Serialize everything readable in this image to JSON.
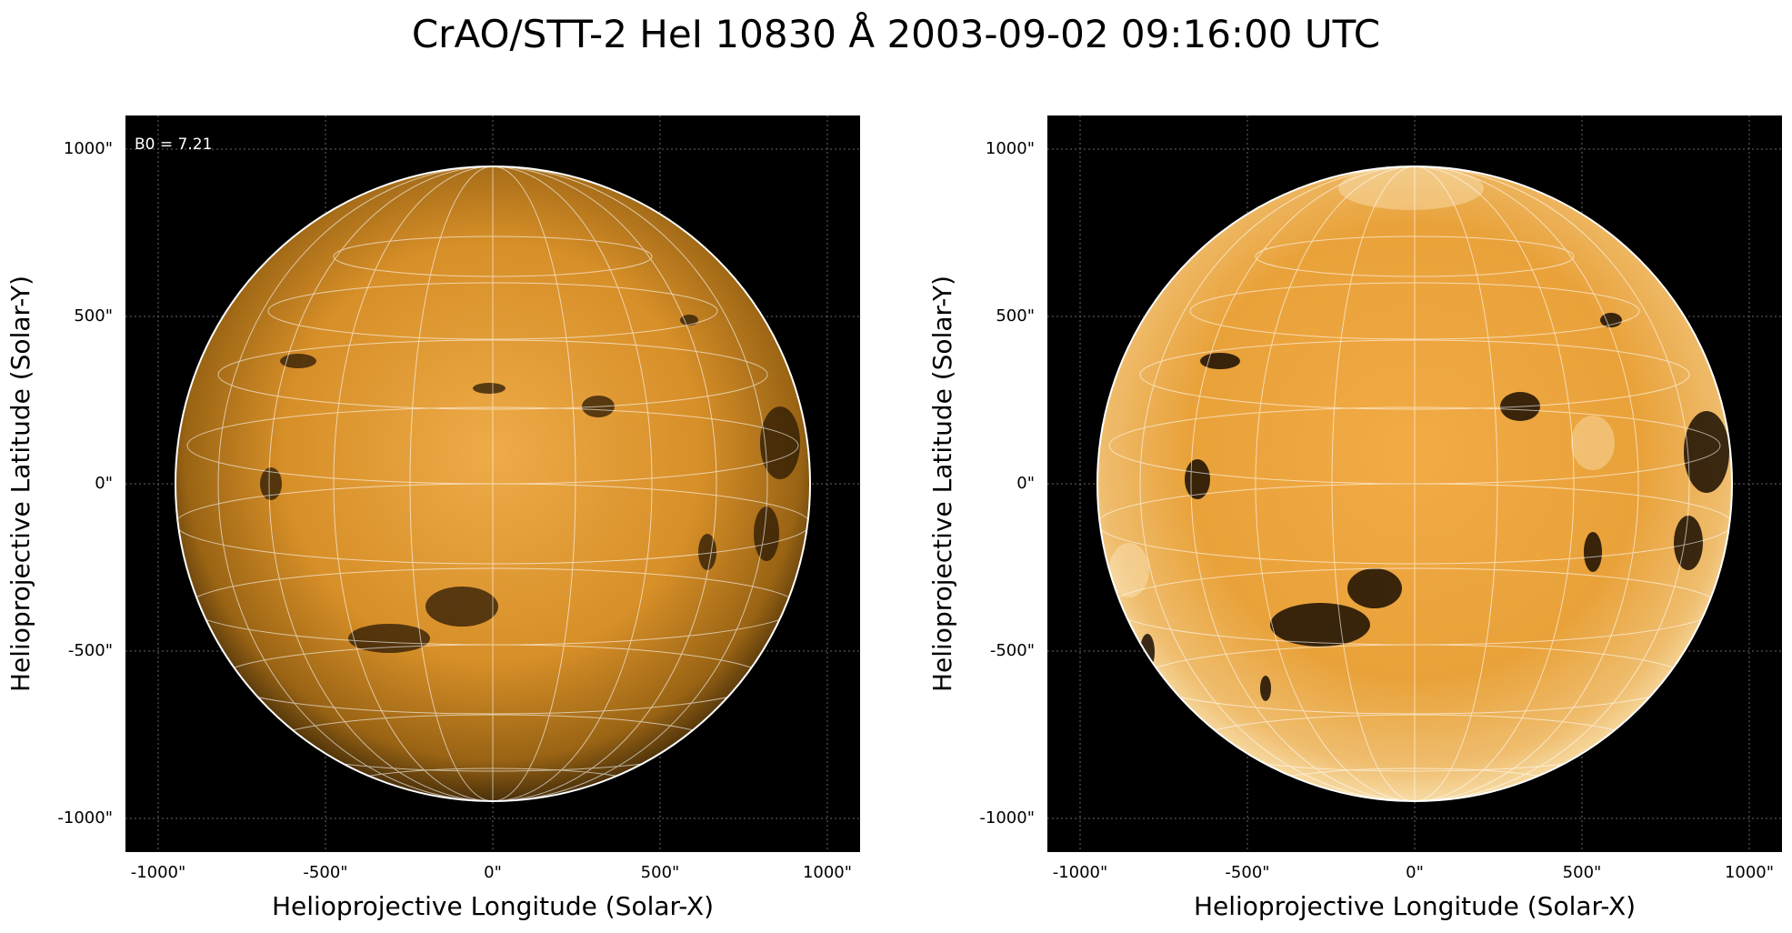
{
  "figure": {
    "title": "CrAO/STT-2 HeI 10830 Å 2003-09-02 09:16:00 UTC"
  },
  "panels": [
    {
      "id": "left",
      "annotation": "B0 = 7.21",
      "xlabel": "Helioprojective Longitude (Solar-X)",
      "ylabel": "Helioprojective Latitude (Solar-Y)",
      "xticks": [
        "-1000\"",
        "-500\"",
        "0\"",
        "500\"",
        "1000\""
      ],
      "yticks": [
        "1000\"",
        "500\"",
        "0\"",
        "-500\"",
        "-1000\""
      ],
      "colors": {
        "disk_center": "#e8a23a",
        "disk_limb": "#5a3a10",
        "grid": "#ffffff",
        "background": "#000000"
      }
    },
    {
      "id": "right",
      "annotation": "",
      "xlabel": "Helioprojective Longitude (Solar-X)",
      "ylabel": "Helioprojective Latitude (Solar-Y)",
      "xticks": [
        "-1000\"",
        "-500\"",
        "0\"",
        "500\"",
        "1000\""
      ],
      "yticks": [
        "1000\"",
        "500\"",
        "0\"",
        "-500\"",
        "-1000\""
      ],
      "colors": {
        "disk_center": "#f0a640",
        "disk_limb": "#f6d79a",
        "grid": "#ffffff",
        "background": "#000000"
      }
    }
  ]
}
